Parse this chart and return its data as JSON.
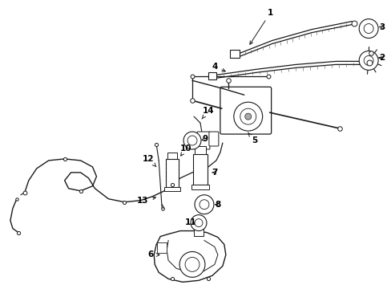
{
  "bg_color": "#ffffff",
  "line_color": "#1a1a1a",
  "fig_width": 4.89,
  "fig_height": 3.6,
  "dpi": 100,
  "label_fontsize": 7.5,
  "arrow_lw": 0.7,
  "arrow_ms": 7
}
